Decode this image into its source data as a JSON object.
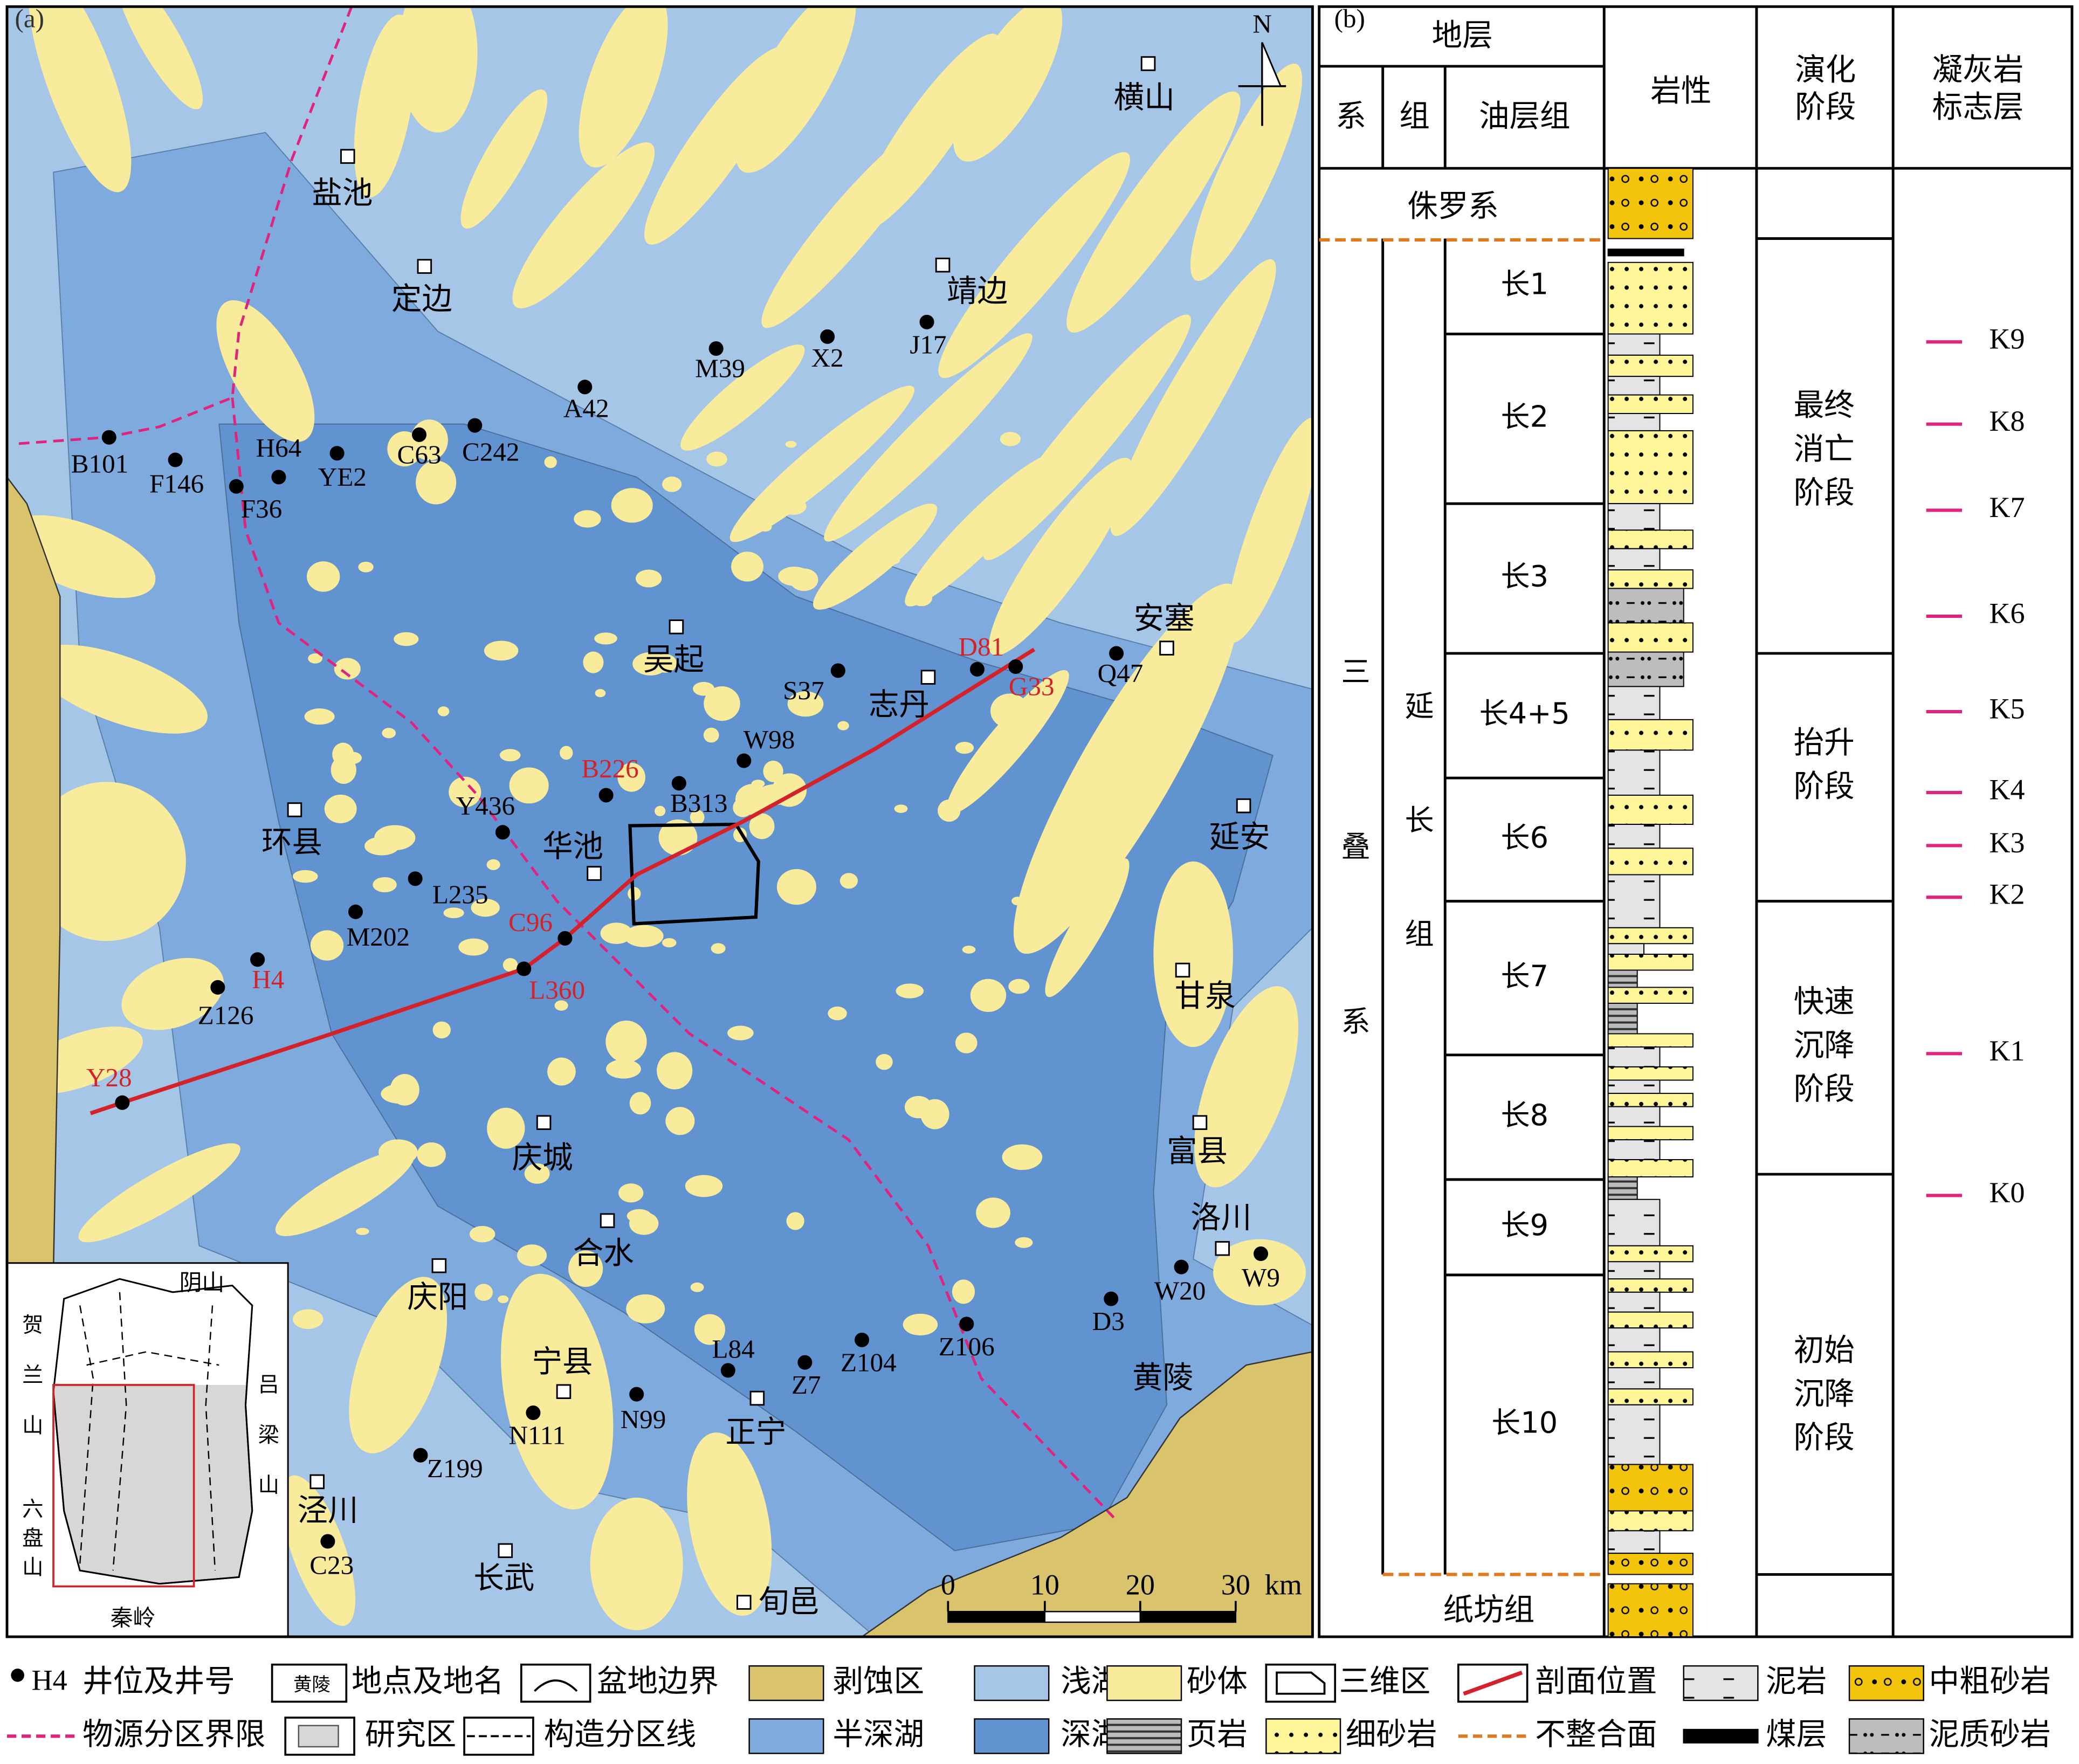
{
  "map": {
    "panel_label": "(a)",
    "north": "N",
    "wells": [
      "B101",
      "F146",
      "F36",
      "H64",
      "YE2",
      "C63",
      "C242",
      "A42",
      "M39",
      "X2",
      "J17",
      "S37",
      "D81",
      "G33",
      "Q47",
      "W98",
      "B226",
      "B313",
      "Y436",
      "L235",
      "M202",
      "C96",
      "L360",
      "H4",
      "Z126",
      "Y28",
      "W20",
      "W9",
      "D3",
      "Z106",
      "Z104",
      "Z7",
      "L84",
      "N99",
      "N111",
      "Z199",
      "C23"
    ],
    "places": [
      "盐池",
      "定边",
      "靖边",
      "横山",
      "吴起",
      "志丹",
      "安塞",
      "环县",
      "华池",
      "延安",
      "甘泉",
      "富县",
      "庆城",
      "洛川",
      "合水",
      "庆阳",
      "黄陵",
      "宁县",
      "正宁",
      "泾川",
      "长武",
      "旬邑"
    ],
    "scale": {
      "ticks": [
        "0",
        "10",
        "20",
        "30"
      ],
      "unit": "km"
    },
    "inset": {
      "labels": [
        "阴山",
        "贺兰山",
        "吕梁山",
        "六盘山",
        "秦岭"
      ]
    }
  },
  "column": {
    "panel_label": "(b)",
    "headers": {
      "strata": "地层",
      "system": "系",
      "formation": "组",
      "member": "油层组",
      "lithology": "岩性",
      "stage": [
        "演化",
        "阶段"
      ],
      "tuff": [
        "凝灰岩",
        "标志层"
      ]
    },
    "jurassic": "侏罗系",
    "system": "三叠系",
    "formation": "延长组",
    "base": "纸坊组",
    "members": [
      "长1",
      "长2",
      "长3",
      "长4+5",
      "长6",
      "长7",
      "长8",
      "长9",
      "长10"
    ],
    "stages": [
      [
        "最终",
        "消亡",
        "阶段"
      ],
      [
        "抬升",
        "阶段"
      ],
      [
        "快速",
        "沉降",
        "阶段"
      ],
      [
        "初始",
        "沉降",
        "阶段"
      ]
    ],
    "tuff_markers": [
      "K9",
      "K8",
      "K7",
      "K6",
      "K5",
      "K4",
      "K3",
      "K2",
      "K1",
      "K0"
    ]
  },
  "legend": {
    "items": [
      {
        "symbol_text": "H4",
        "label": "井位及井号"
      },
      {
        "symbol_text": "黄陵",
        "label": "地点及地名"
      },
      {
        "label": "盆地边界"
      },
      {
        "label": "剥蚀区"
      },
      {
        "label": "浅湖"
      },
      {
        "label": "砂体"
      },
      {
        "label": "三维区"
      },
      {
        "label": "剖面位置"
      },
      {
        "label": "泥岩"
      },
      {
        "label": "中粗砂岩"
      },
      {
        "label": "物源分区界限"
      },
      {
        "label": "研究区"
      },
      {
        "label": "构造分区线"
      },
      {
        "label": "半深湖"
      },
      {
        "label": "深湖"
      },
      {
        "label": "页岩"
      },
      {
        "label": "细砂岩"
      },
      {
        "label": "不整合面"
      },
      {
        "label": "煤层"
      },
      {
        "label": "泥质砂岩"
      }
    ]
  }
}
